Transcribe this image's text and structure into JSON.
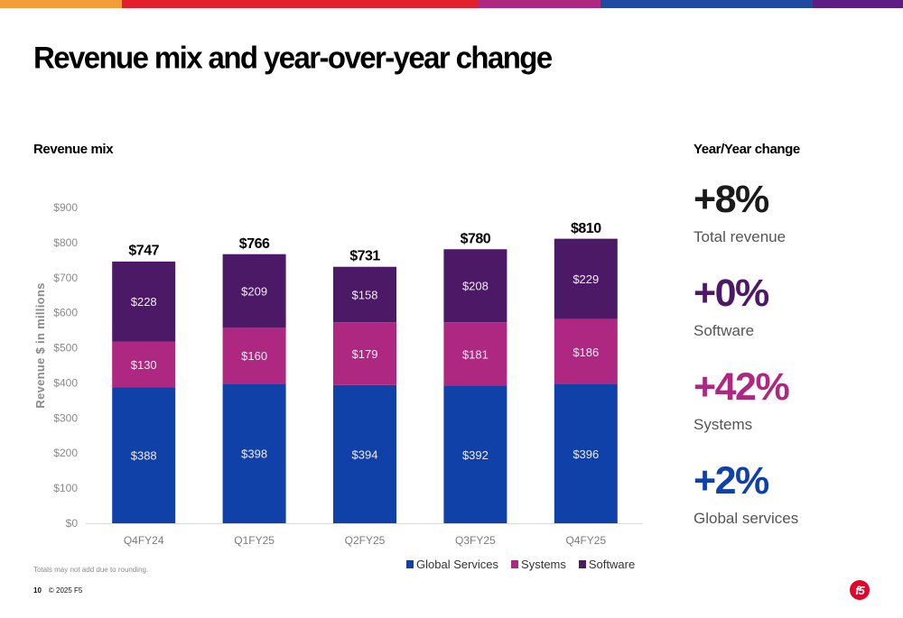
{
  "topbar": {
    "segments": [
      {
        "color": "#f39c38",
        "share": 0.135
      },
      {
        "color": "#e41f2d",
        "share": 0.395
      },
      {
        "color": "#ae2780",
        "share": 0.135
      },
      {
        "color": "#1e4aa1",
        "share": 0.235
      },
      {
        "color": "#5e1d86",
        "share": 0.1
      }
    ]
  },
  "title": "Revenue mix and year-over-year change",
  "left_section_title": "Revenue mix",
  "right_section_title": "Year/Year change",
  "chart_data": {
    "type": "bar",
    "stacked": true,
    "title": "Revenue mix",
    "xlabel": "",
    "ylabel": "Revenue $ in millions",
    "ylim": [
      0,
      900
    ],
    "yticks": [
      0,
      100,
      200,
      300,
      400,
      500,
      600,
      700,
      800,
      900
    ],
    "ytick_labels": [
      "$0",
      "$100",
      "$200",
      "$300",
      "$400",
      "$500",
      "$600",
      "$700",
      "$800",
      "$900"
    ],
    "grid": false,
    "legend_position": "bottom-right",
    "categories": [
      "Q4FY24",
      "Q1FY25",
      "Q2FY25",
      "Q3FY25",
      "Q4FY25"
    ],
    "series": [
      {
        "name": "Global Services",
        "color": "#0f41a8",
        "values": [
          388,
          398,
          394,
          392,
          396
        ],
        "labels": [
          "$388",
          "$398",
          "$394",
          "$392",
          "$396"
        ]
      },
      {
        "name": "Systems",
        "color": "#ae2780",
        "values": [
          130,
          160,
          179,
          181,
          186
        ],
        "labels": [
          "$130",
          "$160",
          "$179",
          "$181",
          "$186"
        ]
      },
      {
        "name": "Software",
        "color": "#4b1966",
        "values": [
          228,
          209,
          158,
          208,
          229
        ],
        "labels": [
          "$228",
          "$209",
          "$158",
          "$208",
          "$229"
        ]
      }
    ],
    "totals": [
      747,
      766,
      731,
      780,
      810
    ],
    "total_labels": [
      "$747",
      "$766",
      "$731",
      "$780",
      "$810"
    ]
  },
  "legend": [
    {
      "label": "Global Services",
      "color": "#0f41a8"
    },
    {
      "label": "Systems",
      "color": "#ae2780"
    },
    {
      "label": "Software",
      "color": "#4b1966"
    }
  ],
  "yoy": [
    {
      "value": "+8%",
      "label": "Total revenue",
      "color": "#1a1a1a"
    },
    {
      "value": "+0%",
      "label": "Software",
      "color": "#4b1966"
    },
    {
      "value": "+42%",
      "label": "Systems",
      "color": "#ae2780"
    },
    {
      "value": "+2%",
      "label": "Global services",
      "color": "#0f41a8"
    }
  ],
  "footnote": "Totals may not add due to rounding.",
  "footer": {
    "page": "10",
    "copyright": "© 2025 F5"
  },
  "logo": {
    "text": "f5"
  }
}
